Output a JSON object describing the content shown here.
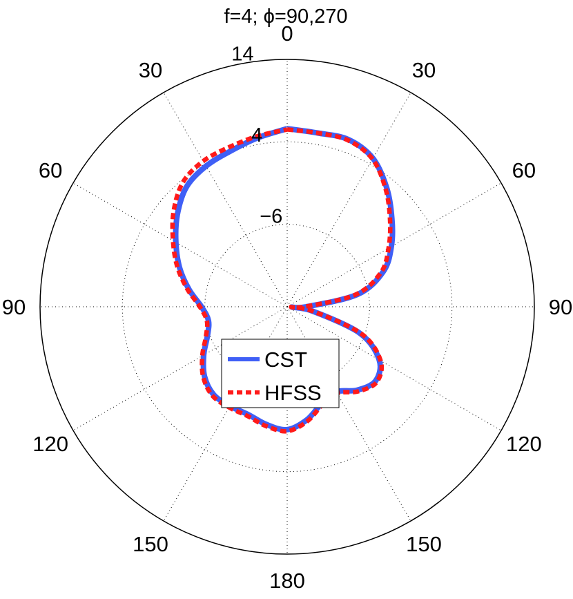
{
  "chart_data": {
    "type": "polar-line",
    "title": "f=4; ϕ=90,270",
    "theta_labels": [
      {
        "deg": 0,
        "label": "0"
      },
      {
        "deg": 30,
        "label": "30"
      },
      {
        "deg": 60,
        "label": "60"
      },
      {
        "deg": 90,
        "label": "90"
      },
      {
        "deg": 120,
        "label": "120"
      },
      {
        "deg": 150,
        "label": "150"
      },
      {
        "deg": 180,
        "label": "180"
      },
      {
        "deg": 210,
        "label": "150"
      },
      {
        "deg": 240,
        "label": "120"
      },
      {
        "deg": 270,
        "label": "90"
      },
      {
        "deg": 300,
        "label": "60"
      },
      {
        "deg": 330,
        "label": "30"
      }
    ],
    "radial_ticks": [
      {
        "value": -6,
        "label": "−6"
      },
      {
        "value": 4,
        "label": "4"
      },
      {
        "value": 14,
        "label": "14"
      }
    ],
    "r_min": -16,
    "r_max": 14,
    "grid": true,
    "legend_position": "center-bottom",
    "theta_unit": "deg",
    "r_unit": "dB",
    "series": [
      {
        "name": "CST",
        "color": "#3f5ff6",
        "style": "solid",
        "points": [
          [
            0,
            5.6
          ],
          [
            10,
            5.4
          ],
          [
            20,
            5.6
          ],
          [
            30,
            4.8
          ],
          [
            40,
            2.8
          ],
          [
            50,
            0.6
          ],
          [
            60,
            -1.4
          ],
          [
            70,
            -3.6
          ],
          [
            80,
            -7.3
          ],
          [
            90,
            -13.7
          ],
          [
            95,
            -15.4
          ],
          [
            100,
            -12.8
          ],
          [
            110,
            -6.6
          ],
          [
            120,
            -3.1
          ],
          [
            130,
            -2.0
          ],
          [
            140,
            -2.8
          ],
          [
            150,
            -4.1
          ],
          [
            160,
            -3.6
          ],
          [
            170,
            -2.1
          ],
          [
            180,
            -1.1
          ],
          [
            190,
            -1.5
          ],
          [
            200,
            -2.1
          ],
          [
            210,
            -2.1
          ],
          [
            220,
            -2.1
          ],
          [
            230,
            -2.9
          ],
          [
            240,
            -4.3
          ],
          [
            250,
            -5.7
          ],
          [
            260,
            -6.3
          ],
          [
            270,
            -5.6
          ],
          [
            280,
            -3.9
          ],
          [
            290,
            -2.1
          ],
          [
            300,
            -0.4
          ],
          [
            310,
            1.4
          ],
          [
            320,
            3.0
          ],
          [
            330,
            3.7
          ],
          [
            340,
            4.1
          ],
          [
            350,
            4.8
          ],
          [
            360,
            5.6
          ]
        ]
      },
      {
        "name": "HFSS",
        "color": "#ff1a1a",
        "style": "dashed",
        "points": [
          [
            0,
            5.5
          ],
          [
            10,
            5.4
          ],
          [
            20,
            5.5
          ],
          [
            30,
            4.7
          ],
          [
            40,
            2.6
          ],
          [
            50,
            0.3
          ],
          [
            60,
            -1.8
          ],
          [
            70,
            -3.9
          ],
          [
            80,
            -7.6
          ],
          [
            90,
            -13.9
          ],
          [
            95,
            -15.5
          ],
          [
            100,
            -12.8
          ],
          [
            110,
            -6.4
          ],
          [
            120,
            -2.9
          ],
          [
            130,
            -1.8
          ],
          [
            140,
            -2.6
          ],
          [
            150,
            -3.9
          ],
          [
            160,
            -3.4
          ],
          [
            170,
            -1.9
          ],
          [
            180,
            -0.9
          ],
          [
            190,
            -1.3
          ],
          [
            200,
            -1.9
          ],
          [
            210,
            -1.9
          ],
          [
            220,
            -1.9
          ],
          [
            230,
            -2.7
          ],
          [
            240,
            -4.1
          ],
          [
            250,
            -5.5
          ],
          [
            260,
            -6.1
          ],
          [
            270,
            -5.4
          ],
          [
            280,
            -3.7
          ],
          [
            290,
            -1.8
          ],
          [
            300,
            0.0
          ],
          [
            310,
            2.0
          ],
          [
            320,
            3.7
          ],
          [
            330,
            4.4
          ],
          [
            340,
            4.6
          ],
          [
            350,
            5.0
          ],
          [
            360,
            5.5
          ]
        ]
      }
    ]
  }
}
